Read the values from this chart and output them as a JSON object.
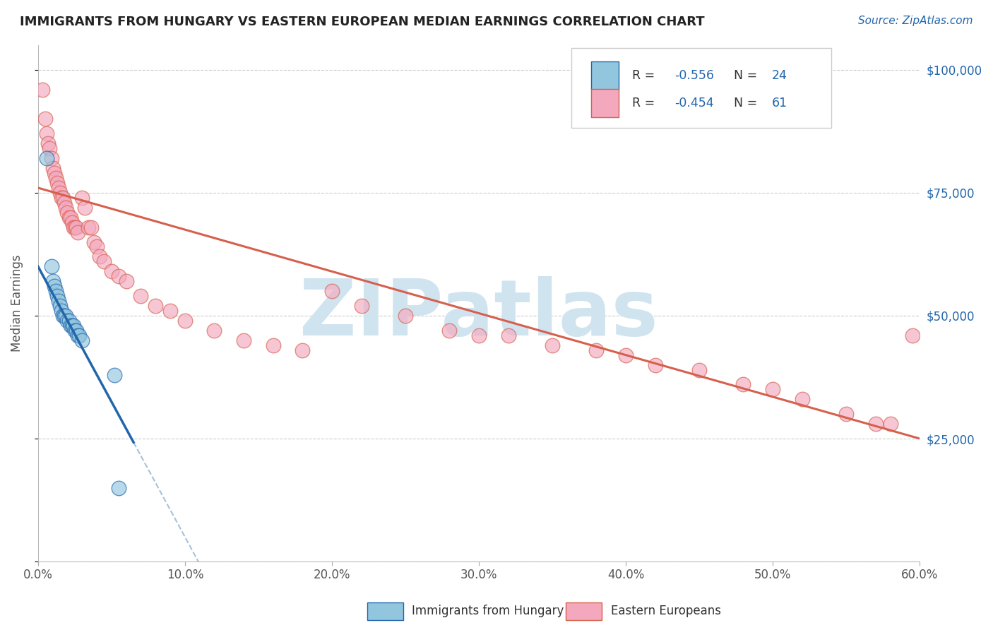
{
  "title": "IMMIGRANTS FROM HUNGARY VS EASTERN EUROPEAN MEDIAN EARNINGS CORRELATION CHART",
  "source": "Source: ZipAtlas.com",
  "ylabel": "Median Earnings",
  "xlim": [
    0.0,
    0.6
  ],
  "ylim": [
    0,
    105000
  ],
  "xticks": [
    0.0,
    0.1,
    0.2,
    0.3,
    0.4,
    0.5,
    0.6
  ],
  "xticklabels": [
    "0.0%",
    "10.0%",
    "20.0%",
    "30.0%",
    "40.0%",
    "50.0%",
    "60.0%"
  ],
  "yticks": [
    0,
    25000,
    50000,
    75000,
    100000
  ],
  "yticklabels": [
    "",
    "$25,000",
    "$50,000",
    "$75,000",
    "$100,000"
  ],
  "legend_label1": "Immigrants from Hungary",
  "legend_label2": "Eastern Europeans",
  "color_blue": "#92c5de",
  "color_pink": "#f4a8be",
  "color_blue_line": "#2166ac",
  "color_pink_line": "#d6604d",
  "watermark": "ZIPatlas",
  "watermark_color": "#d0e4f0",
  "title_color": "#222222",
  "axis_label_color": "#555555",
  "ytick_color": "#2166ac",
  "xtick_color": "#555555",
  "blue_points_x": [
    0.006,
    0.009,
    0.01,
    0.011,
    0.012,
    0.013,
    0.014,
    0.015,
    0.016,
    0.017,
    0.018,
    0.019,
    0.02,
    0.021,
    0.022,
    0.023,
    0.024,
    0.025,
    0.026,
    0.027,
    0.028,
    0.03,
    0.052,
    0.055
  ],
  "blue_points_y": [
    82000,
    60000,
    57000,
    56000,
    55000,
    54000,
    53000,
    52000,
    51000,
    50000,
    50000,
    50000,
    49000,
    49000,
    48000,
    48000,
    48000,
    47000,
    47000,
    46000,
    46000,
    45000,
    38000,
    15000
  ],
  "pink_points_x": [
    0.003,
    0.005,
    0.006,
    0.007,
    0.008,
    0.009,
    0.01,
    0.011,
    0.012,
    0.013,
    0.014,
    0.015,
    0.016,
    0.017,
    0.018,
    0.019,
    0.02,
    0.021,
    0.022,
    0.023,
    0.024,
    0.025,
    0.026,
    0.027,
    0.03,
    0.032,
    0.034,
    0.036,
    0.038,
    0.04,
    0.042,
    0.045,
    0.05,
    0.055,
    0.06,
    0.07,
    0.08,
    0.09,
    0.1,
    0.12,
    0.14,
    0.16,
    0.18,
    0.2,
    0.22,
    0.25,
    0.28,
    0.3,
    0.32,
    0.35,
    0.38,
    0.4,
    0.42,
    0.45,
    0.48,
    0.5,
    0.52,
    0.55,
    0.57,
    0.58,
    0.595
  ],
  "pink_points_y": [
    96000,
    90000,
    87000,
    85000,
    84000,
    82000,
    80000,
    79000,
    78000,
    77000,
    76000,
    75000,
    74000,
    74000,
    73000,
    72000,
    71000,
    70000,
    70000,
    69000,
    68000,
    68000,
    68000,
    67000,
    74000,
    72000,
    68000,
    68000,
    65000,
    64000,
    62000,
    61000,
    59000,
    58000,
    57000,
    54000,
    52000,
    51000,
    49000,
    47000,
    45000,
    44000,
    43000,
    55000,
    52000,
    50000,
    47000,
    46000,
    46000,
    44000,
    43000,
    42000,
    40000,
    39000,
    36000,
    35000,
    33000,
    30000,
    28000,
    28000,
    46000
  ],
  "pink_line_x0": 0.0,
  "pink_line_y0": 76000,
  "pink_line_x1": 0.6,
  "pink_line_y1": 25000,
  "blue_line_x0": 0.0,
  "blue_line_y0": 60000,
  "blue_line_x1": 0.1,
  "blue_line_y1": 5000,
  "blue_line_solid_end": 0.065,
  "blue_line_dash_end": 0.18
}
